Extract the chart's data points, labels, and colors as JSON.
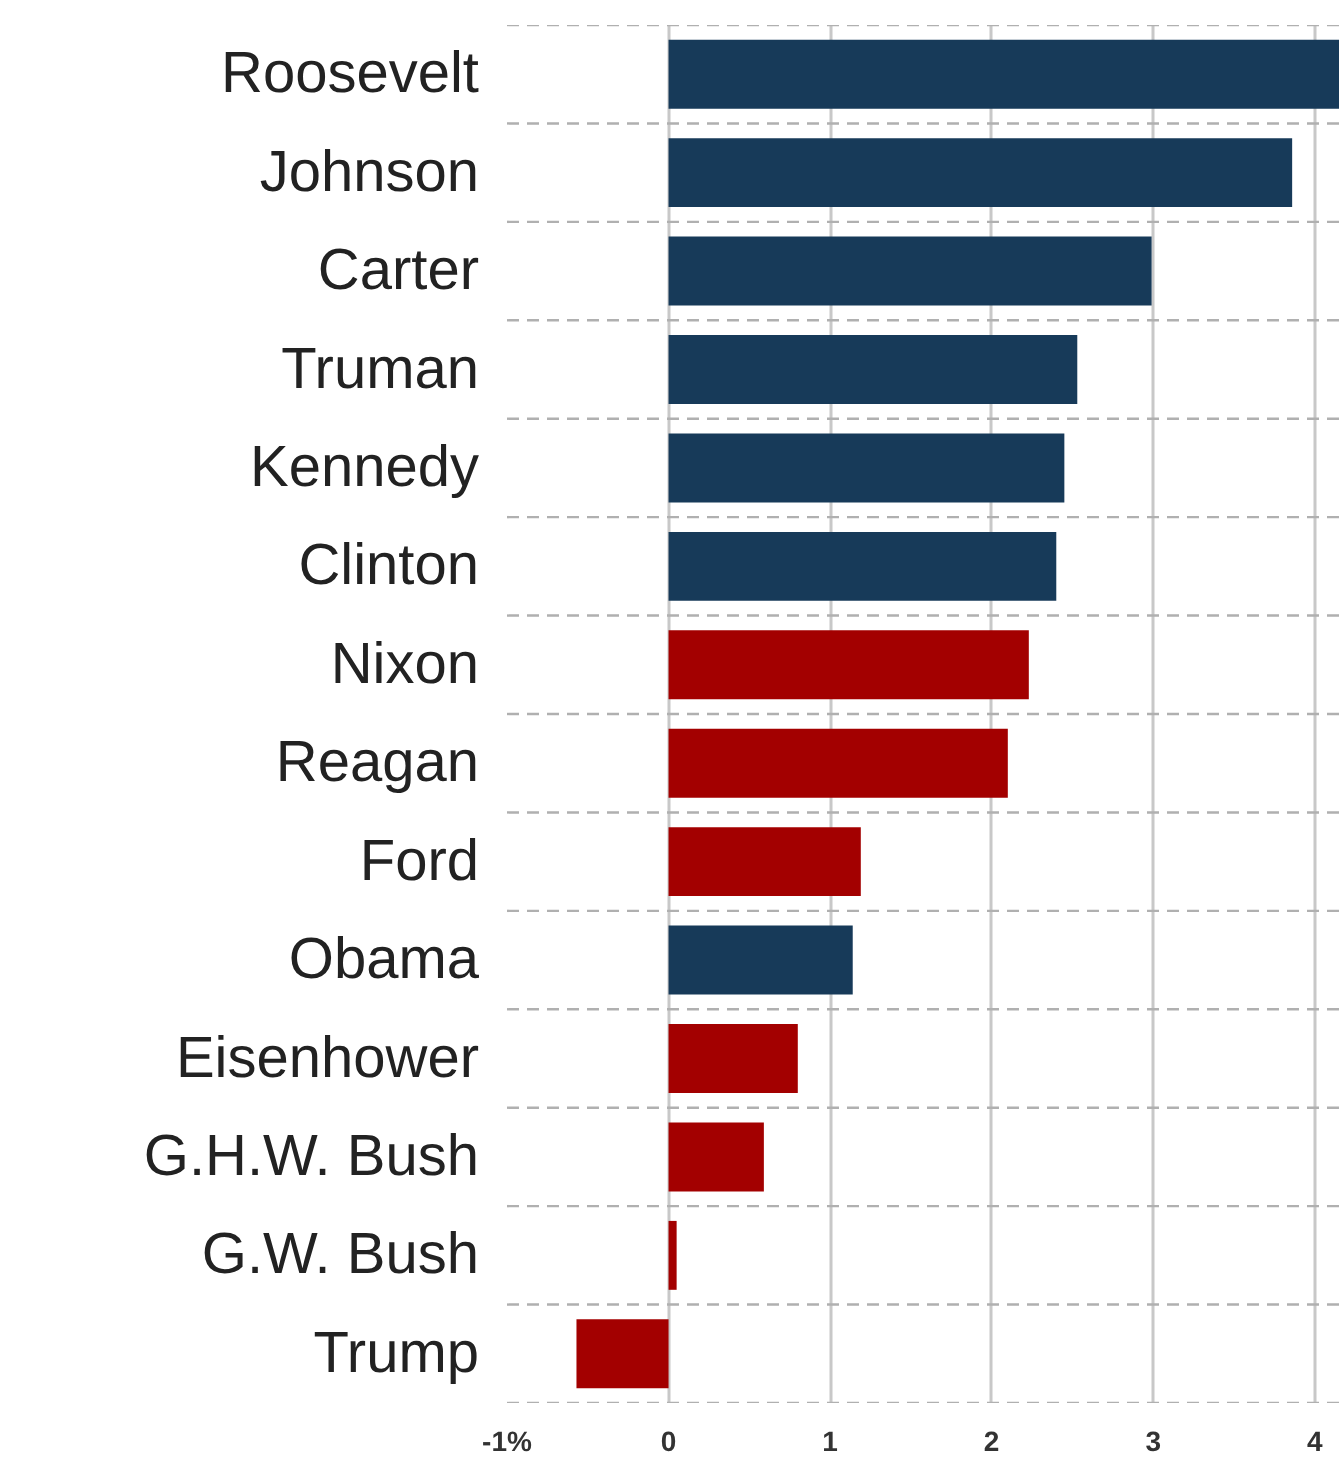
{
  "chart_data": {
    "type": "bar",
    "orientation": "horizontal",
    "categories": [
      "Roosevelt",
      "Johnson",
      "Carter",
      "Truman",
      "Kennedy",
      "Clinton",
      "Nixon",
      "Reagan",
      "Ford",
      "Obama",
      "Eisenhower",
      "G.H.W. Bush",
      "G.W. Bush",
      "Trump"
    ],
    "values": [
      4.15,
      3.86,
      2.99,
      2.53,
      2.45,
      2.4,
      2.23,
      2.1,
      1.19,
      1.14,
      0.8,
      0.59,
      0.05,
      -0.57
    ],
    "colors": [
      "#173a59",
      "#173a59",
      "#173a59",
      "#173a59",
      "#173a59",
      "#173a59",
      "#a30000",
      "#a30000",
      "#a30000",
      "#173a59",
      "#a30000",
      "#a30000",
      "#a30000",
      "#a30000"
    ],
    "xlim": [
      -1,
      4.15
    ],
    "xticks": [
      {
        "value": -1,
        "label": "-1%"
      },
      0,
      1,
      2,
      3,
      4
    ],
    "grid": true
  }
}
